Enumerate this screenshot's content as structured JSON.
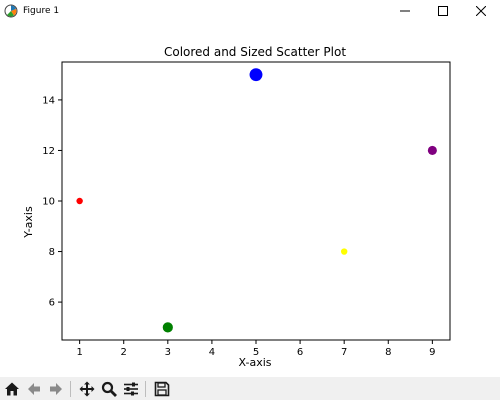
{
  "window": {
    "title": "Figure 1",
    "icon": "matplotlib-figure-icon",
    "controls": [
      "minimize-icon",
      "maximize-icon",
      "close-icon"
    ]
  },
  "toolbar": {
    "buttons": [
      "home-icon",
      "back-arrow-icon",
      "forward-arrow-icon",
      "pan-icon",
      "zoom-icon",
      "configure-subplots-icon",
      "save-icon"
    ]
  },
  "chart_data": {
    "type": "scatter",
    "title": "Colored and Sized Scatter Plot",
    "xlabel": "X-axis",
    "ylabel": "Y-axis",
    "xlim": [
      0.6,
      9.4
    ],
    "ylim": [
      4.5,
      15.5
    ],
    "xticks": [
      1,
      2,
      3,
      4,
      5,
      6,
      7,
      8,
      9
    ],
    "yticks": [
      6,
      8,
      10,
      12,
      14
    ],
    "grid": false,
    "points": [
      {
        "x": 1,
        "y": 10,
        "color": "#ff0000",
        "size": 20
      },
      {
        "x": 3,
        "y": 5,
        "color": "#008000",
        "size": 50
      },
      {
        "x": 5,
        "y": 15,
        "color": "#0000ff",
        "size": 80
      },
      {
        "x": 7,
        "y": 8,
        "color": "#ffff00",
        "size": 20
      },
      {
        "x": 9,
        "y": 12,
        "color": "#800080",
        "size": 40
      }
    ]
  }
}
